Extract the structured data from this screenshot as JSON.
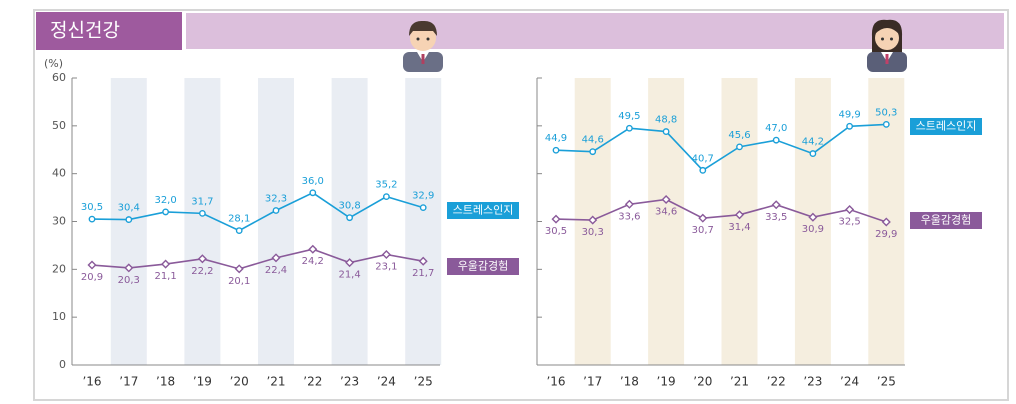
{
  "page_title": "정신건강",
  "chart_data": [
    {
      "type": "line",
      "y_unit": "(%)",
      "show_tick_labels": true,
      "band_color": "#e9edf3",
      "categories": [
        "’16",
        "’17",
        "’18",
        "’19",
        "’20",
        "’21",
        "’22",
        "’23",
        "’24",
        "’25"
      ],
      "ylim": [
        0,
        60
      ],
      "yticks": [
        0,
        10,
        20,
        30,
        40,
        50,
        60
      ],
      "series": [
        {
          "name": "스트레스인지",
          "color": "#1a9fd8",
          "marker": "circle",
          "values": [
            30.5,
            30.4,
            32.0,
            31.7,
            28.1,
            32.3,
            36.0,
            30.8,
            35.2,
            32.9
          ],
          "value_labels": [
            "30,5",
            "30,4",
            "32,0",
            "31,7",
            "28,1",
            "32,3",
            "36,0",
            "30,8",
            "35,2",
            "32,9"
          ]
        },
        {
          "name": "우울감경험",
          "color": "#8a5a9a",
          "marker": "diamond",
          "values": [
            20.9,
            20.3,
            21.1,
            22.2,
            20.1,
            22.4,
            24.2,
            21.4,
            23.1,
            21.7
          ],
          "value_labels": [
            "20,9",
            "20,3",
            "21,1",
            "22,2",
            "20,1",
            "22,4",
            "24,2",
            "21,4",
            "23,1",
            "21,7"
          ]
        }
      ]
    },
    {
      "type": "line",
      "show_tick_labels": false,
      "band_color": "#f5eedf",
      "categories": [
        "’16",
        "’17",
        "’18",
        "’19",
        "’20",
        "’21",
        "’22",
        "’23",
        "’24",
        "’25"
      ],
      "ylim": [
        0,
        60
      ],
      "yticks": [
        0,
        10,
        20,
        30,
        40,
        50,
        60
      ],
      "series": [
        {
          "name": "스트레스인지",
          "color": "#1a9fd8",
          "marker": "circle",
          "values": [
            44.9,
            44.6,
            49.5,
            48.8,
            40.7,
            45.6,
            47.0,
            44.2,
            49.9,
            50.3
          ],
          "value_labels": [
            "44,9",
            "44,6",
            "49,5",
            "48,8",
            "40,7",
            "45,6",
            "47,0",
            "44,2",
            "49,9",
            "50,3"
          ]
        },
        {
          "name": "우울감경험",
          "color": "#8a5a9a",
          "marker": "diamond",
          "values": [
            30.5,
            30.3,
            33.6,
            34.6,
            30.7,
            31.4,
            33.5,
            30.9,
            32.5,
            29.9
          ],
          "value_labels": [
            "30,5",
            "30,3",
            "33,6",
            "34,6",
            "30,7",
            "31,4",
            "33,5",
            "30,9",
            "32,5",
            "29,9"
          ]
        }
      ]
    }
  ]
}
